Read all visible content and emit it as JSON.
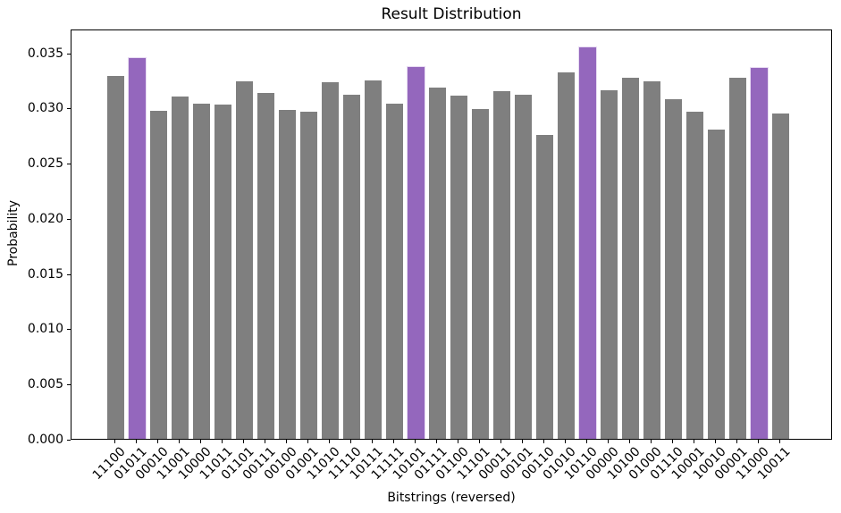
{
  "chart_data": {
    "type": "bar",
    "title": "Result Distribution",
    "xlabel": "Bitstrings (reversed)",
    "ylabel": "Probability",
    "categories": [
      "11100",
      "01011",
      "00010",
      "11001",
      "10000",
      "11011",
      "01101",
      "00111",
      "00100",
      "01001",
      "11010",
      "11110",
      "10111",
      "11111",
      "10101",
      "01111",
      "01100",
      "11101",
      "00011",
      "00101",
      "00110",
      "01010",
      "10110",
      "00000",
      "10100",
      "01000",
      "01110",
      "10001",
      "10010",
      "00001",
      "11000",
      "10011"
    ],
    "values": [
      0.0329,
      0.0345,
      0.0297,
      0.031,
      0.0304,
      0.0303,
      0.0324,
      0.0313,
      0.0298,
      0.0296,
      0.0323,
      0.0312,
      0.0325,
      0.0304,
      0.0337,
      0.0318,
      0.0311,
      0.0299,
      0.0315,
      0.0312,
      0.0275,
      0.0332,
      0.0355,
      0.0316,
      0.0327,
      0.0324,
      0.0308,
      0.0296,
      0.028,
      0.0327,
      0.0336,
      0.0295
    ],
    "highlighted_categories": [
      "01011",
      "10101",
      "10110",
      "11000"
    ],
    "bar_color": "#7f7f7f",
    "highlight_color": "#9467bd",
    "highlight_edge_color": "#e8dcf3",
    "axis_color": "#000000",
    "background_color": "#ffffff",
    "yticks": [
      0.0,
      0.005,
      0.01,
      0.015,
      0.02,
      0.025,
      0.03,
      0.035
    ],
    "ytick_format_decimals": 3,
    "ylim": [
      0,
      0.0372
    ],
    "x_tick_rotation": 45,
    "grid": false,
    "legend": null
  }
}
